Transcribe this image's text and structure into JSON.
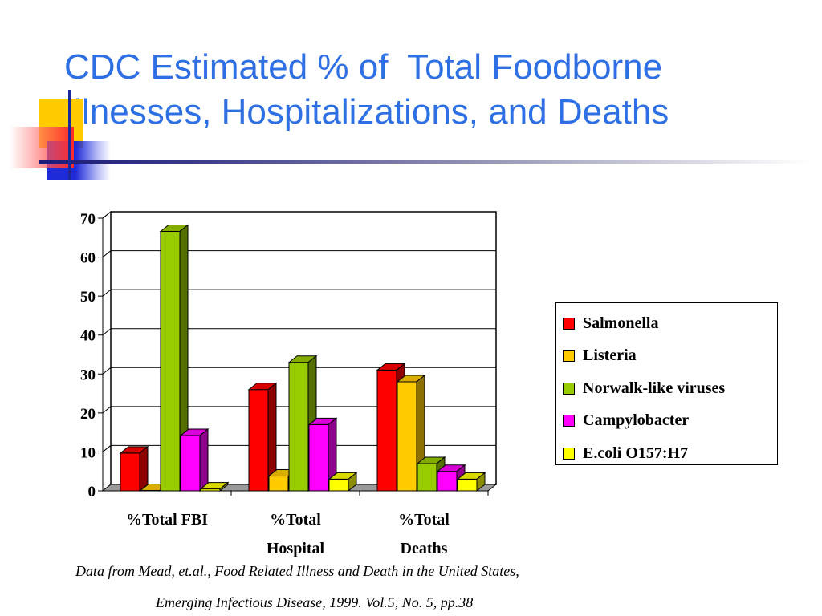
{
  "slide": {
    "title_line1": "CDC Estimated % of  Total Foodborne",
    "title_line2": "Illnesses, Hospitalizations, and Deaths",
    "source_line1": "Data from Mead, et.al., Food Related Illness and Death in the United States,",
    "source_line2": "Emerging Infectious Disease, 1999. Vol.5, No. 5, pp.38"
  },
  "chart_data": {
    "type": "bar",
    "style": "3d-clustered",
    "title": "",
    "xlabel": "",
    "ylabel": "",
    "categories": [
      [
        "%Total FBI"
      ],
      [
        "%Total",
        "Hospital"
      ],
      [
        "%Total",
        "Deaths"
      ]
    ],
    "ylim": [
      0,
      70
    ],
    "yticks": [
      0,
      10,
      20,
      30,
      40,
      50,
      60,
      70
    ],
    "grid": true,
    "legend_position": "right",
    "series": [
      {
        "name": "Salmonella",
        "color": "#ff0000",
        "values": [
          9.7,
          26,
          31
        ]
      },
      {
        "name": "Listeria",
        "color": "#ffcc00",
        "values": [
          0.02,
          3.8,
          28
        ]
      },
      {
        "name": "Norwalk-like viruses",
        "color": "#99cc00",
        "values": [
          66.6,
          33,
          7
        ]
      },
      {
        "name": "Campylobacter",
        "color": "#ff00ff",
        "values": [
          14.2,
          17,
          5
        ]
      },
      {
        "name": "E.coli O157:H7",
        "color": "#ffff00",
        "values": [
          0.5,
          3,
          3
        ]
      }
    ]
  }
}
